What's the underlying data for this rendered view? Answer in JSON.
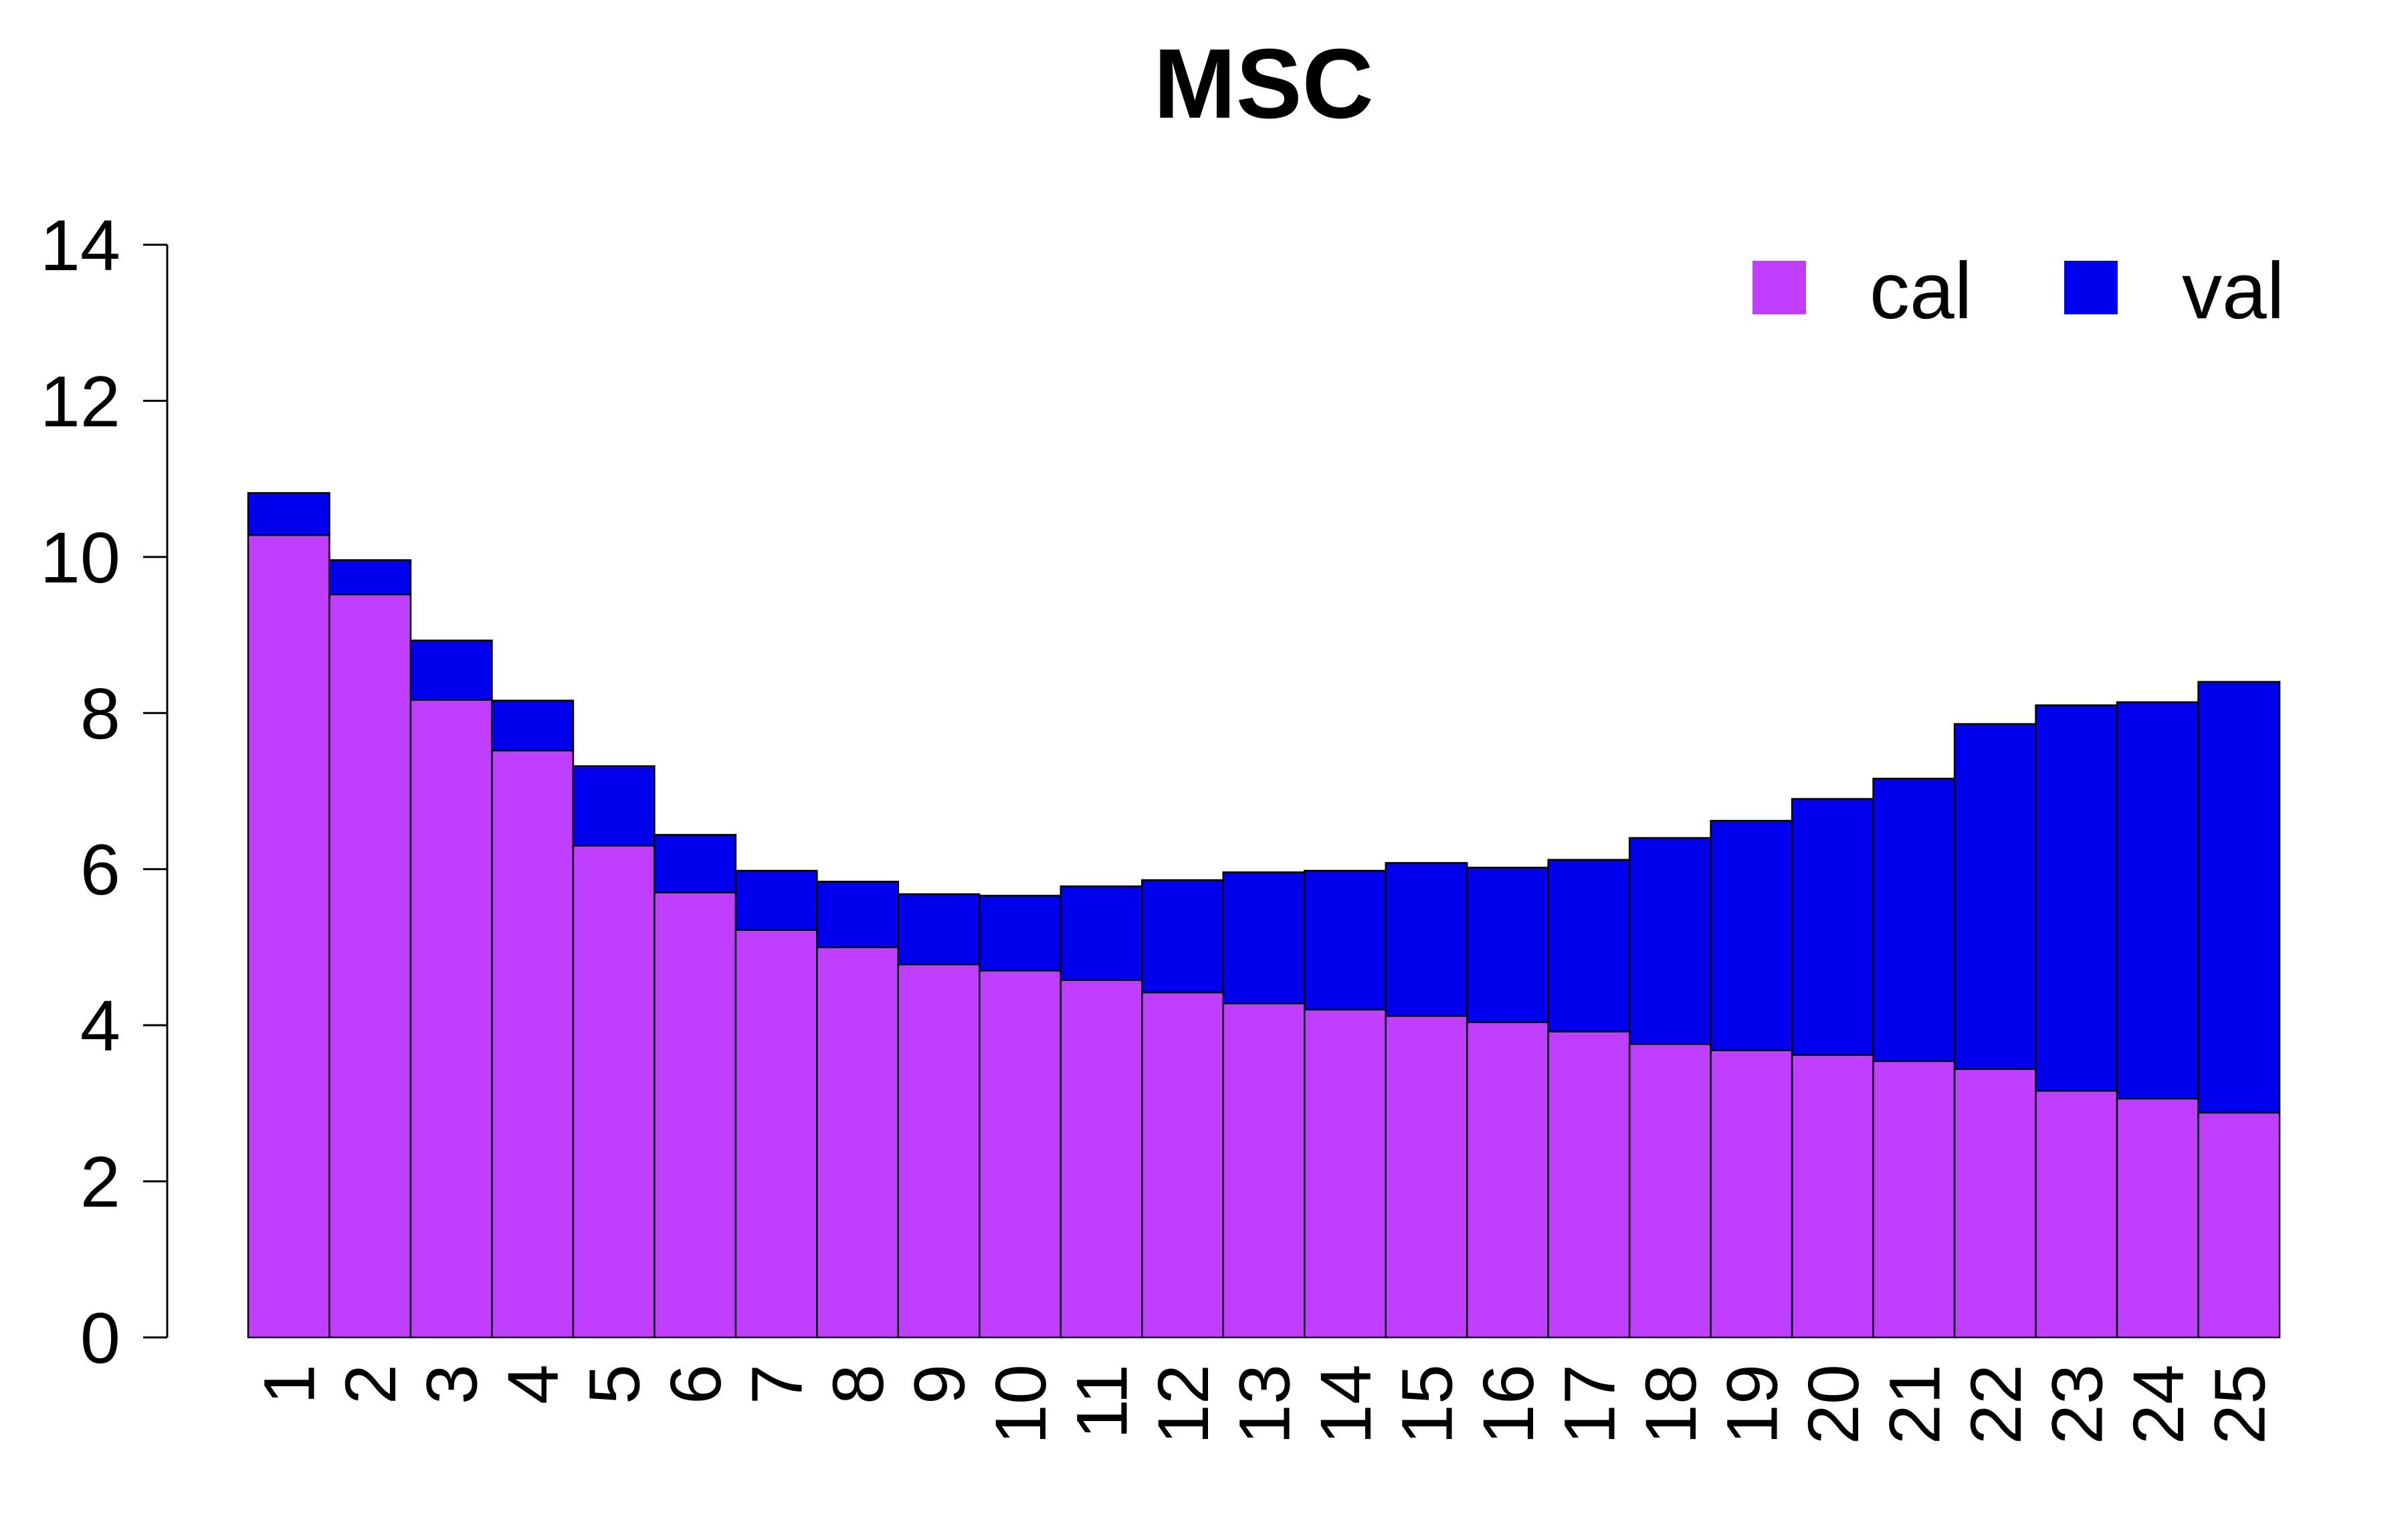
{
  "chart_data": {
    "type": "bar",
    "stacked": true,
    "title": "MSC",
    "xlabel": "",
    "ylabel": "",
    "ylim": [
      0,
      14
    ],
    "yticks": [
      0,
      2,
      4,
      6,
      8,
      10,
      12,
      14
    ],
    "categories": [
      "1",
      "2",
      "3",
      "4",
      "5",
      "6",
      "7",
      "8",
      "9",
      "10",
      "11",
      "12",
      "13",
      "14",
      "15",
      "16",
      "17",
      "18",
      "19",
      "20",
      "21",
      "22",
      "23",
      "24",
      "25"
    ],
    "series": [
      {
        "name": "cal",
        "color": "#BF3EFF",
        "values": [
          10.28,
          9.52,
          8.17,
          7.52,
          6.3,
          5.7,
          5.22,
          5.0,
          4.78,
          4.7,
          4.58,
          4.42,
          4.28,
          4.2,
          4.12,
          4.04,
          3.92,
          3.76,
          3.68,
          3.62,
          3.54,
          3.44,
          3.16,
          3.06,
          2.88
        ]
      },
      {
        "name": "val",
        "color": "#0000EE",
        "values": [
          0.54,
          0.44,
          0.76,
          0.64,
          1.02,
          0.74,
          0.76,
          0.84,
          0.9,
          0.96,
          1.2,
          1.44,
          1.68,
          1.78,
          1.96,
          1.98,
          2.2,
          2.64,
          2.94,
          3.28,
          3.62,
          4.42,
          4.94,
          5.08,
          5.52
        ]
      }
    ],
    "legend": {
      "position": "top-right",
      "entries": [
        "cal",
        "val"
      ]
    },
    "grid": false
  }
}
